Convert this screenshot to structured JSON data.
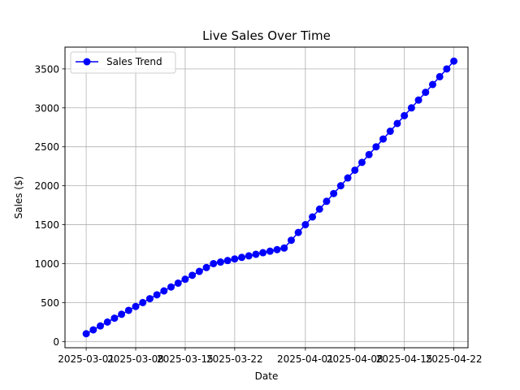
{
  "chart_data": {
    "type": "line",
    "title": "Live Sales Over Time",
    "xlabel": "Date",
    "ylabel": "Sales ($)",
    "x_tick_labels": [
      "2025-03-01",
      "2025-03-08",
      "2025-03-15",
      "2025-03-22",
      "2025-04-01",
      "2025-04-08",
      "2025-04-15",
      "2025-04-22"
    ],
    "y_ticks": [
      0,
      500,
      1000,
      1500,
      2000,
      2500,
      3000,
      3500
    ],
    "xlim": [
      "2025-02-26",
      "2025-04-24"
    ],
    "ylim": [
      -80,
      3780
    ],
    "grid": true,
    "legend_position": "upper-left",
    "series": [
      {
        "name": "Sales Trend",
        "color": "#0000ff",
        "marker": "circle",
        "x": [
          "2025-03-01",
          "2025-03-02",
          "2025-03-03",
          "2025-03-04",
          "2025-03-05",
          "2025-03-06",
          "2025-03-07",
          "2025-03-08",
          "2025-03-09",
          "2025-03-10",
          "2025-03-11",
          "2025-03-12",
          "2025-03-13",
          "2025-03-14",
          "2025-03-15",
          "2025-03-16",
          "2025-03-17",
          "2025-03-18",
          "2025-03-19",
          "2025-03-20",
          "2025-03-21",
          "2025-03-22",
          "2025-03-23",
          "2025-03-24",
          "2025-03-25",
          "2025-03-26",
          "2025-03-27",
          "2025-03-28",
          "2025-03-29",
          "2025-03-30",
          "2025-03-31",
          "2025-04-01",
          "2025-04-02",
          "2025-04-03",
          "2025-04-04",
          "2025-04-05",
          "2025-04-06",
          "2025-04-07",
          "2025-04-08",
          "2025-04-09",
          "2025-04-10",
          "2025-04-11",
          "2025-04-12",
          "2025-04-13",
          "2025-04-14",
          "2025-04-15",
          "2025-04-16",
          "2025-04-17",
          "2025-04-18",
          "2025-04-19",
          "2025-04-20",
          "2025-04-21",
          "2025-04-22"
        ],
        "y": [
          100,
          150,
          200,
          250,
          300,
          350,
          400,
          450,
          500,
          550,
          600,
          650,
          700,
          750,
          800,
          850,
          900,
          950,
          1000,
          1020,
          1040,
          1060,
          1080,
          1100,
          1120,
          1140,
          1160,
          1180,
          1200,
          1300,
          1400,
          1500,
          1600,
          1700,
          1800,
          1900,
          2000,
          2100,
          2200,
          2300,
          2400,
          2500,
          2600,
          2700,
          2800,
          2900,
          3000,
          3100,
          3200,
          3300,
          3400,
          3500,
          3600
        ]
      }
    ]
  }
}
